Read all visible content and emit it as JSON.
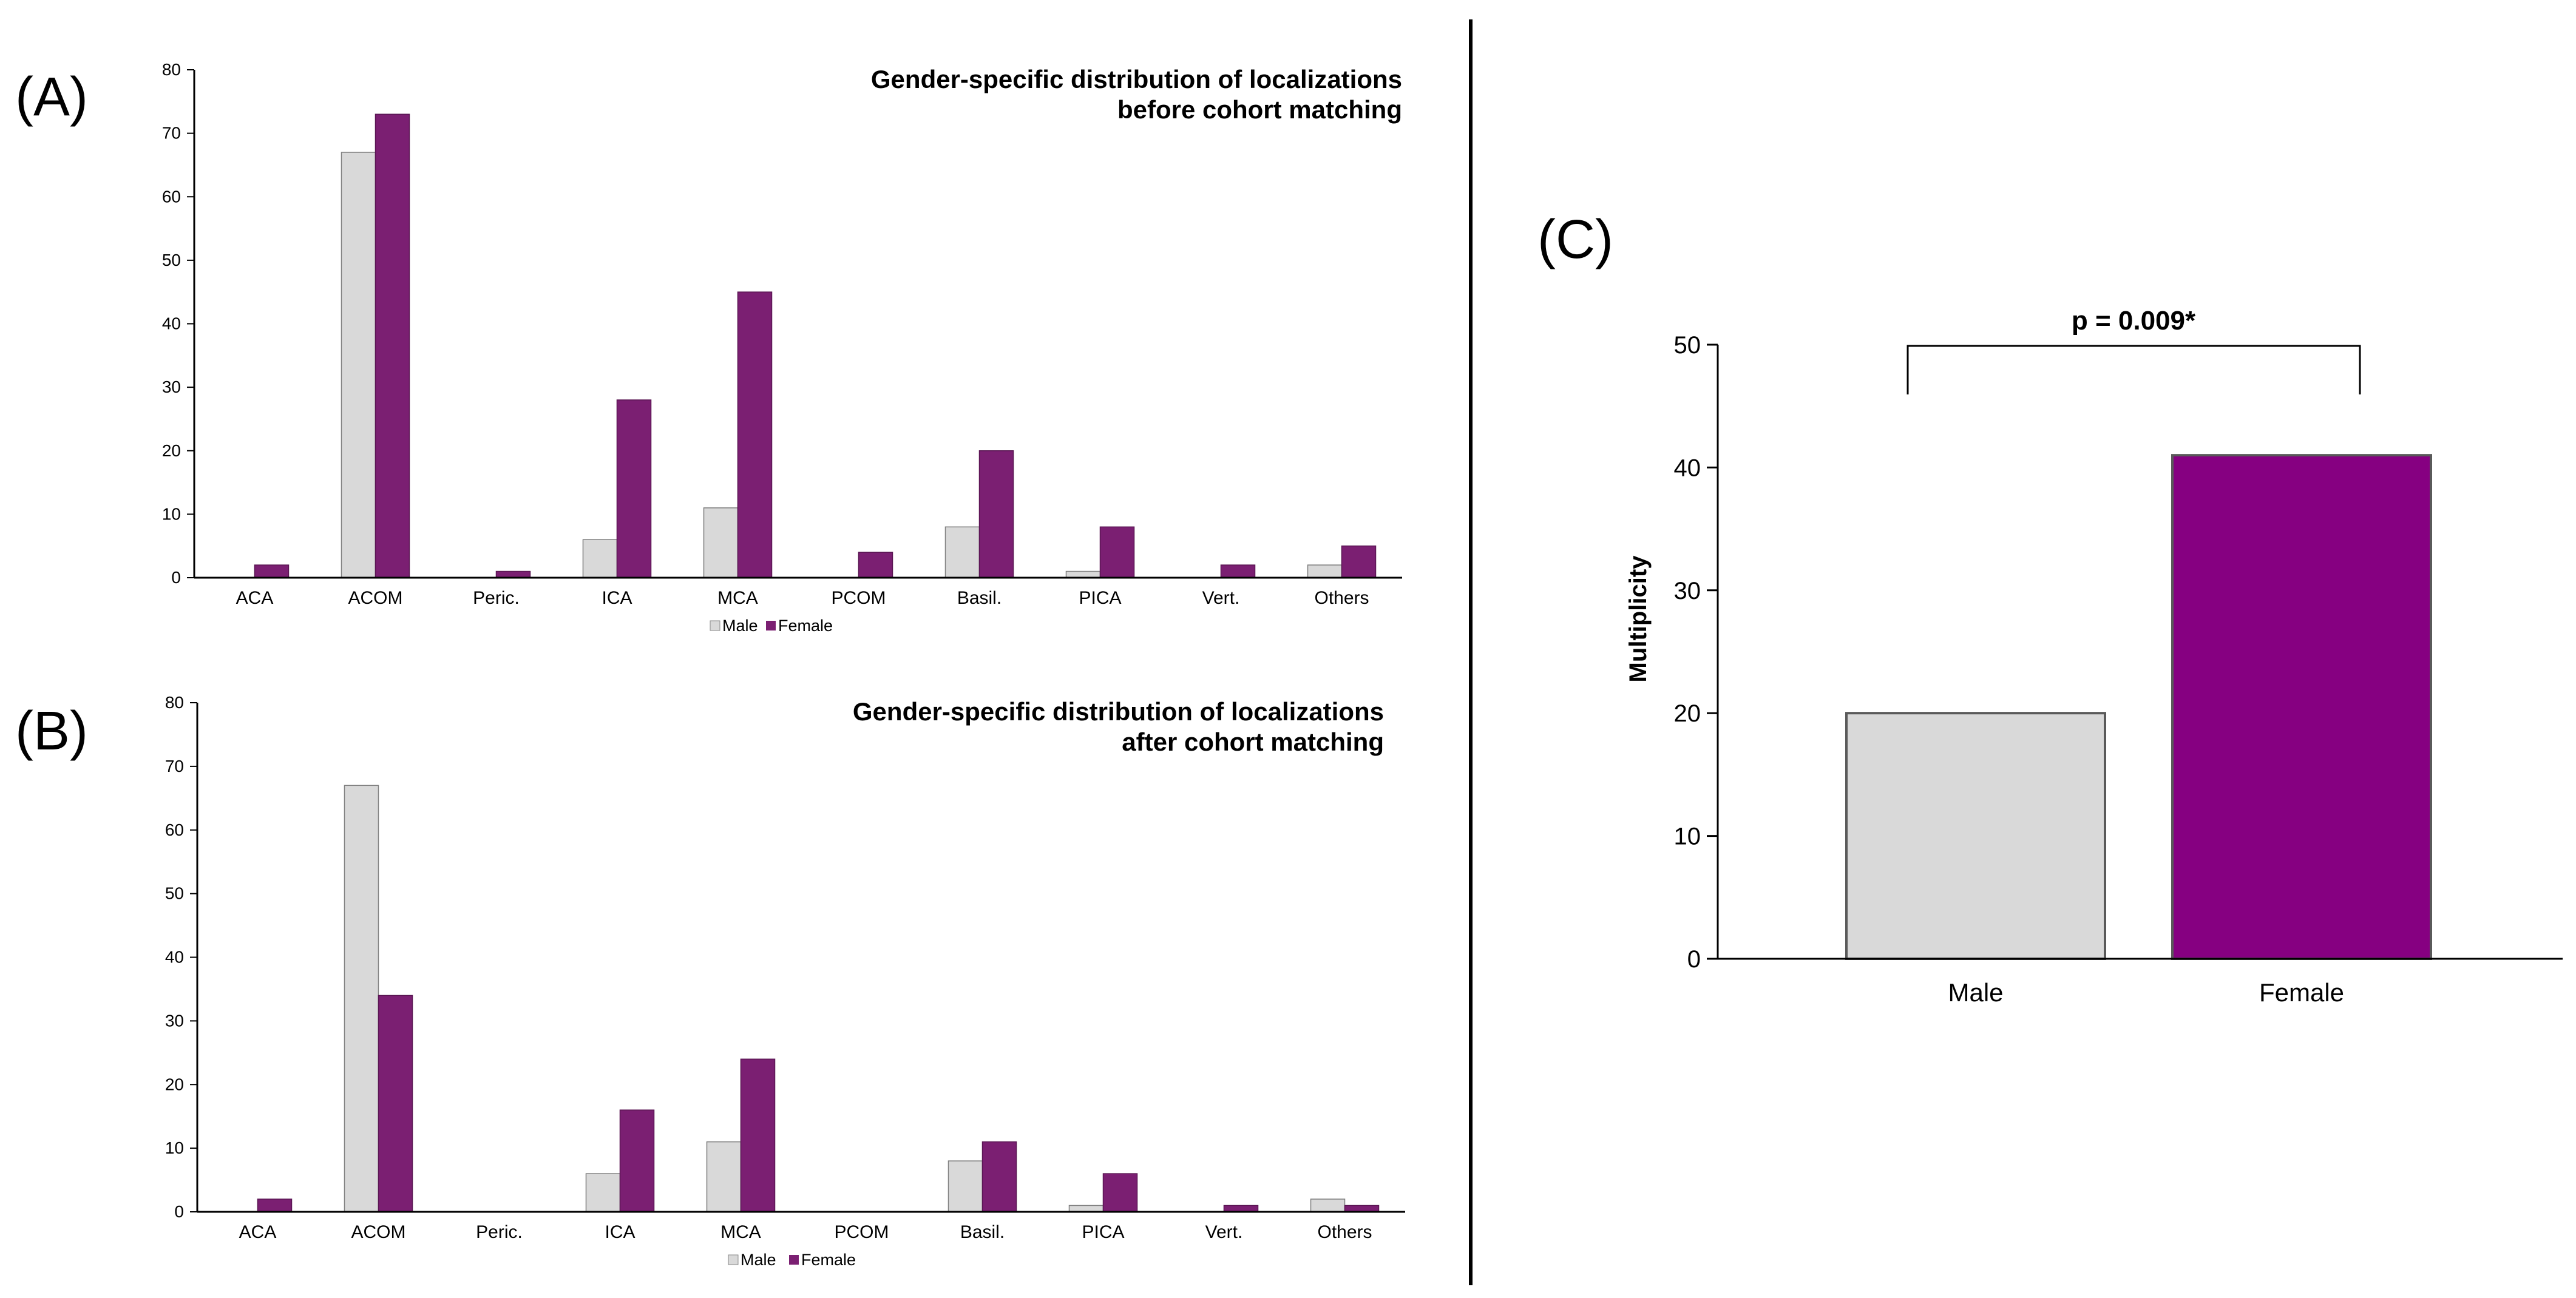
{
  "colors": {
    "male": "#d9d9d9",
    "female_ab": "#7b1f72",
    "female_c": "#860081",
    "axis": "#000000"
  },
  "chart_data": [
    {
      "id": "A",
      "panel_label": "(A)",
      "type": "bar",
      "title_line1": "Gender-specific distribution of localizations",
      "title_line2": "before cohort matching",
      "categories": [
        "ACA",
        "ACOM",
        "Peric.",
        "ICA",
        "MCA",
        "PCOM",
        "Basil.",
        "PICA",
        "Vert.",
        "Others"
      ],
      "series": [
        {
          "name": "Male",
          "values": [
            0,
            67,
            0,
            6,
            11,
            0,
            8,
            1,
            0,
            2
          ]
        },
        {
          "name": "Female",
          "values": [
            2,
            73,
            1,
            28,
            45,
            4,
            20,
            8,
            2,
            5
          ]
        }
      ],
      "yticks": [
        "0",
        "10",
        "20",
        "30",
        "40",
        "50",
        "60",
        "70",
        "80"
      ],
      "ylim": [
        0,
        80
      ],
      "legend": [
        "Male",
        "Female"
      ],
      "legend_position": "bottom-center"
    },
    {
      "id": "B",
      "panel_label": "(B)",
      "type": "bar",
      "title_line1": "Gender-specific distribution of localizations",
      "title_line2": "after cohort matching",
      "categories": [
        "ACA",
        "ACOM",
        "Peric.",
        "ICA",
        "MCA",
        "PCOM",
        "Basil.",
        "PICA",
        "Vert.",
        "Others"
      ],
      "series": [
        {
          "name": "Male",
          "values": [
            0,
            67,
            0,
            6,
            11,
            0,
            8,
            1,
            0,
            2
          ]
        },
        {
          "name": "Female",
          "values": [
            2,
            34,
            0,
            16,
            24,
            0,
            11,
            6,
            1,
            1
          ]
        }
      ],
      "yticks": [
        "0",
        "10",
        "20",
        "30",
        "40",
        "50",
        "60",
        "70",
        "80"
      ],
      "ylim": [
        0,
        80
      ],
      "legend": [
        "Male",
        "Female"
      ],
      "legend_position": "bottom-center"
    },
    {
      "id": "C",
      "panel_label": "(C)",
      "type": "bar",
      "categories": [
        "Male",
        "Female"
      ],
      "values": [
        20,
        41
      ],
      "ylabel": "Multiplicity",
      "yticks": [
        "0",
        "10",
        "20",
        "30",
        "40",
        "50"
      ],
      "ylim": [
        0,
        50
      ],
      "annotation": "p = 0.009*"
    }
  ]
}
